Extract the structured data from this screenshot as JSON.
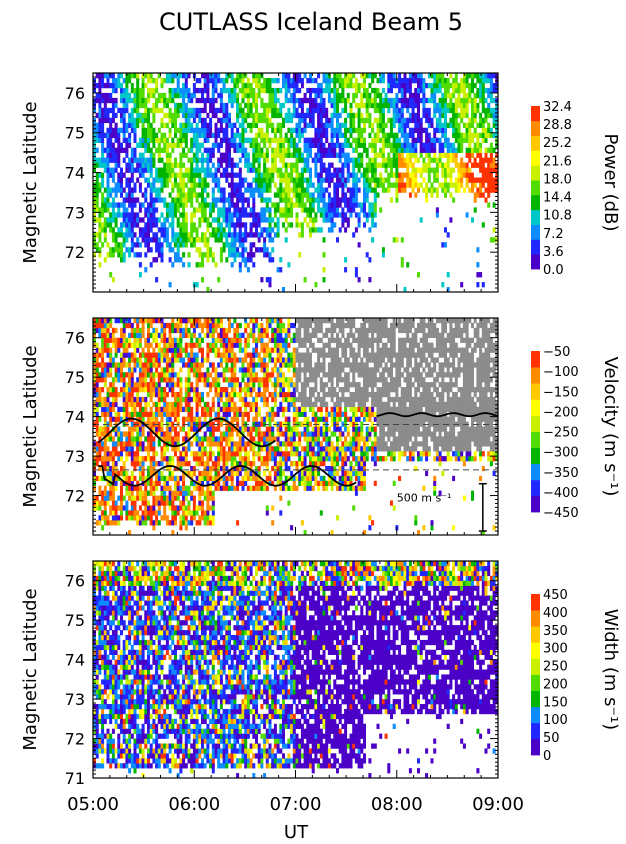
{
  "chart_data": {
    "type": "heatmap",
    "title": "CUTLASS Iceland Beam 5",
    "xlabel": "UT",
    "x_ticks": [
      "05:00",
      "06:00",
      "07:00",
      "08:00",
      "09:00"
    ],
    "x_range": [
      "05:00",
      "09:00"
    ],
    "panels": [
      {
        "id": "power",
        "ylabel": "Magnetic Latitude",
        "y_ticks": [
          72,
          73,
          74,
          75,
          76
        ],
        "ylim": [
          71,
          76.5
        ],
        "colorbar_label": "Power (dB)",
        "colorbar_ticks": [
          "32.4",
          "28.8",
          "25.2",
          "21.6",
          "18.0",
          "14.4",
          "10.8",
          "7.2",
          "3.6",
          "0.0"
        ],
        "colors": [
          "#4b00c8",
          "#2028ff",
          "#0c8cff",
          "#00c8c8",
          "#00b400",
          "#50dc00",
          "#c8f000",
          "#ffff00",
          "#ffc800",
          "#ff8c00",
          "#ff3200"
        ]
      },
      {
        "id": "velocity",
        "ylabel": "Magnetic Latitude",
        "y_ticks": [
          72,
          73,
          74,
          75,
          76
        ],
        "ylim": [
          71,
          76.5
        ],
        "colorbar_label": "Velocity (m s⁻¹)",
        "colorbar_ticks": [
          "−50",
          "−100",
          "−150",
          "−200",
          "−250",
          "−300",
          "−350",
          "−400",
          "−450"
        ],
        "colors": [
          "#4b00c8",
          "#2028ff",
          "#0c8cff",
          "#00b400",
          "#50dc00",
          "#c8f000",
          "#ffff00",
          "#ffc800",
          "#ff8c00",
          "#ff3200"
        ],
        "ground_scatter_color": "#8c8c8c",
        "dashed_lines_lat": [
          73.8,
          72.65
        ],
        "annotation": "500 m s⁻¹"
      },
      {
        "id": "width",
        "ylabel": "Magnetic Latitude",
        "y_ticks": [
          71,
          72,
          73,
          74,
          75,
          76
        ],
        "ylim": [
          71,
          76.5
        ],
        "colorbar_label": "Width (m s⁻¹)",
        "colorbar_ticks": [
          "450",
          "400",
          "350",
          "300",
          "250",
          "200",
          "150",
          "100",
          "50",
          "0"
        ],
        "colors": [
          "#4b00c8",
          "#2028ff",
          "#0c8cff",
          "#00b400",
          "#50dc00",
          "#c8f000",
          "#ffff00",
          "#ffc800",
          "#ff8c00",
          "#ff3200"
        ]
      }
    ]
  }
}
